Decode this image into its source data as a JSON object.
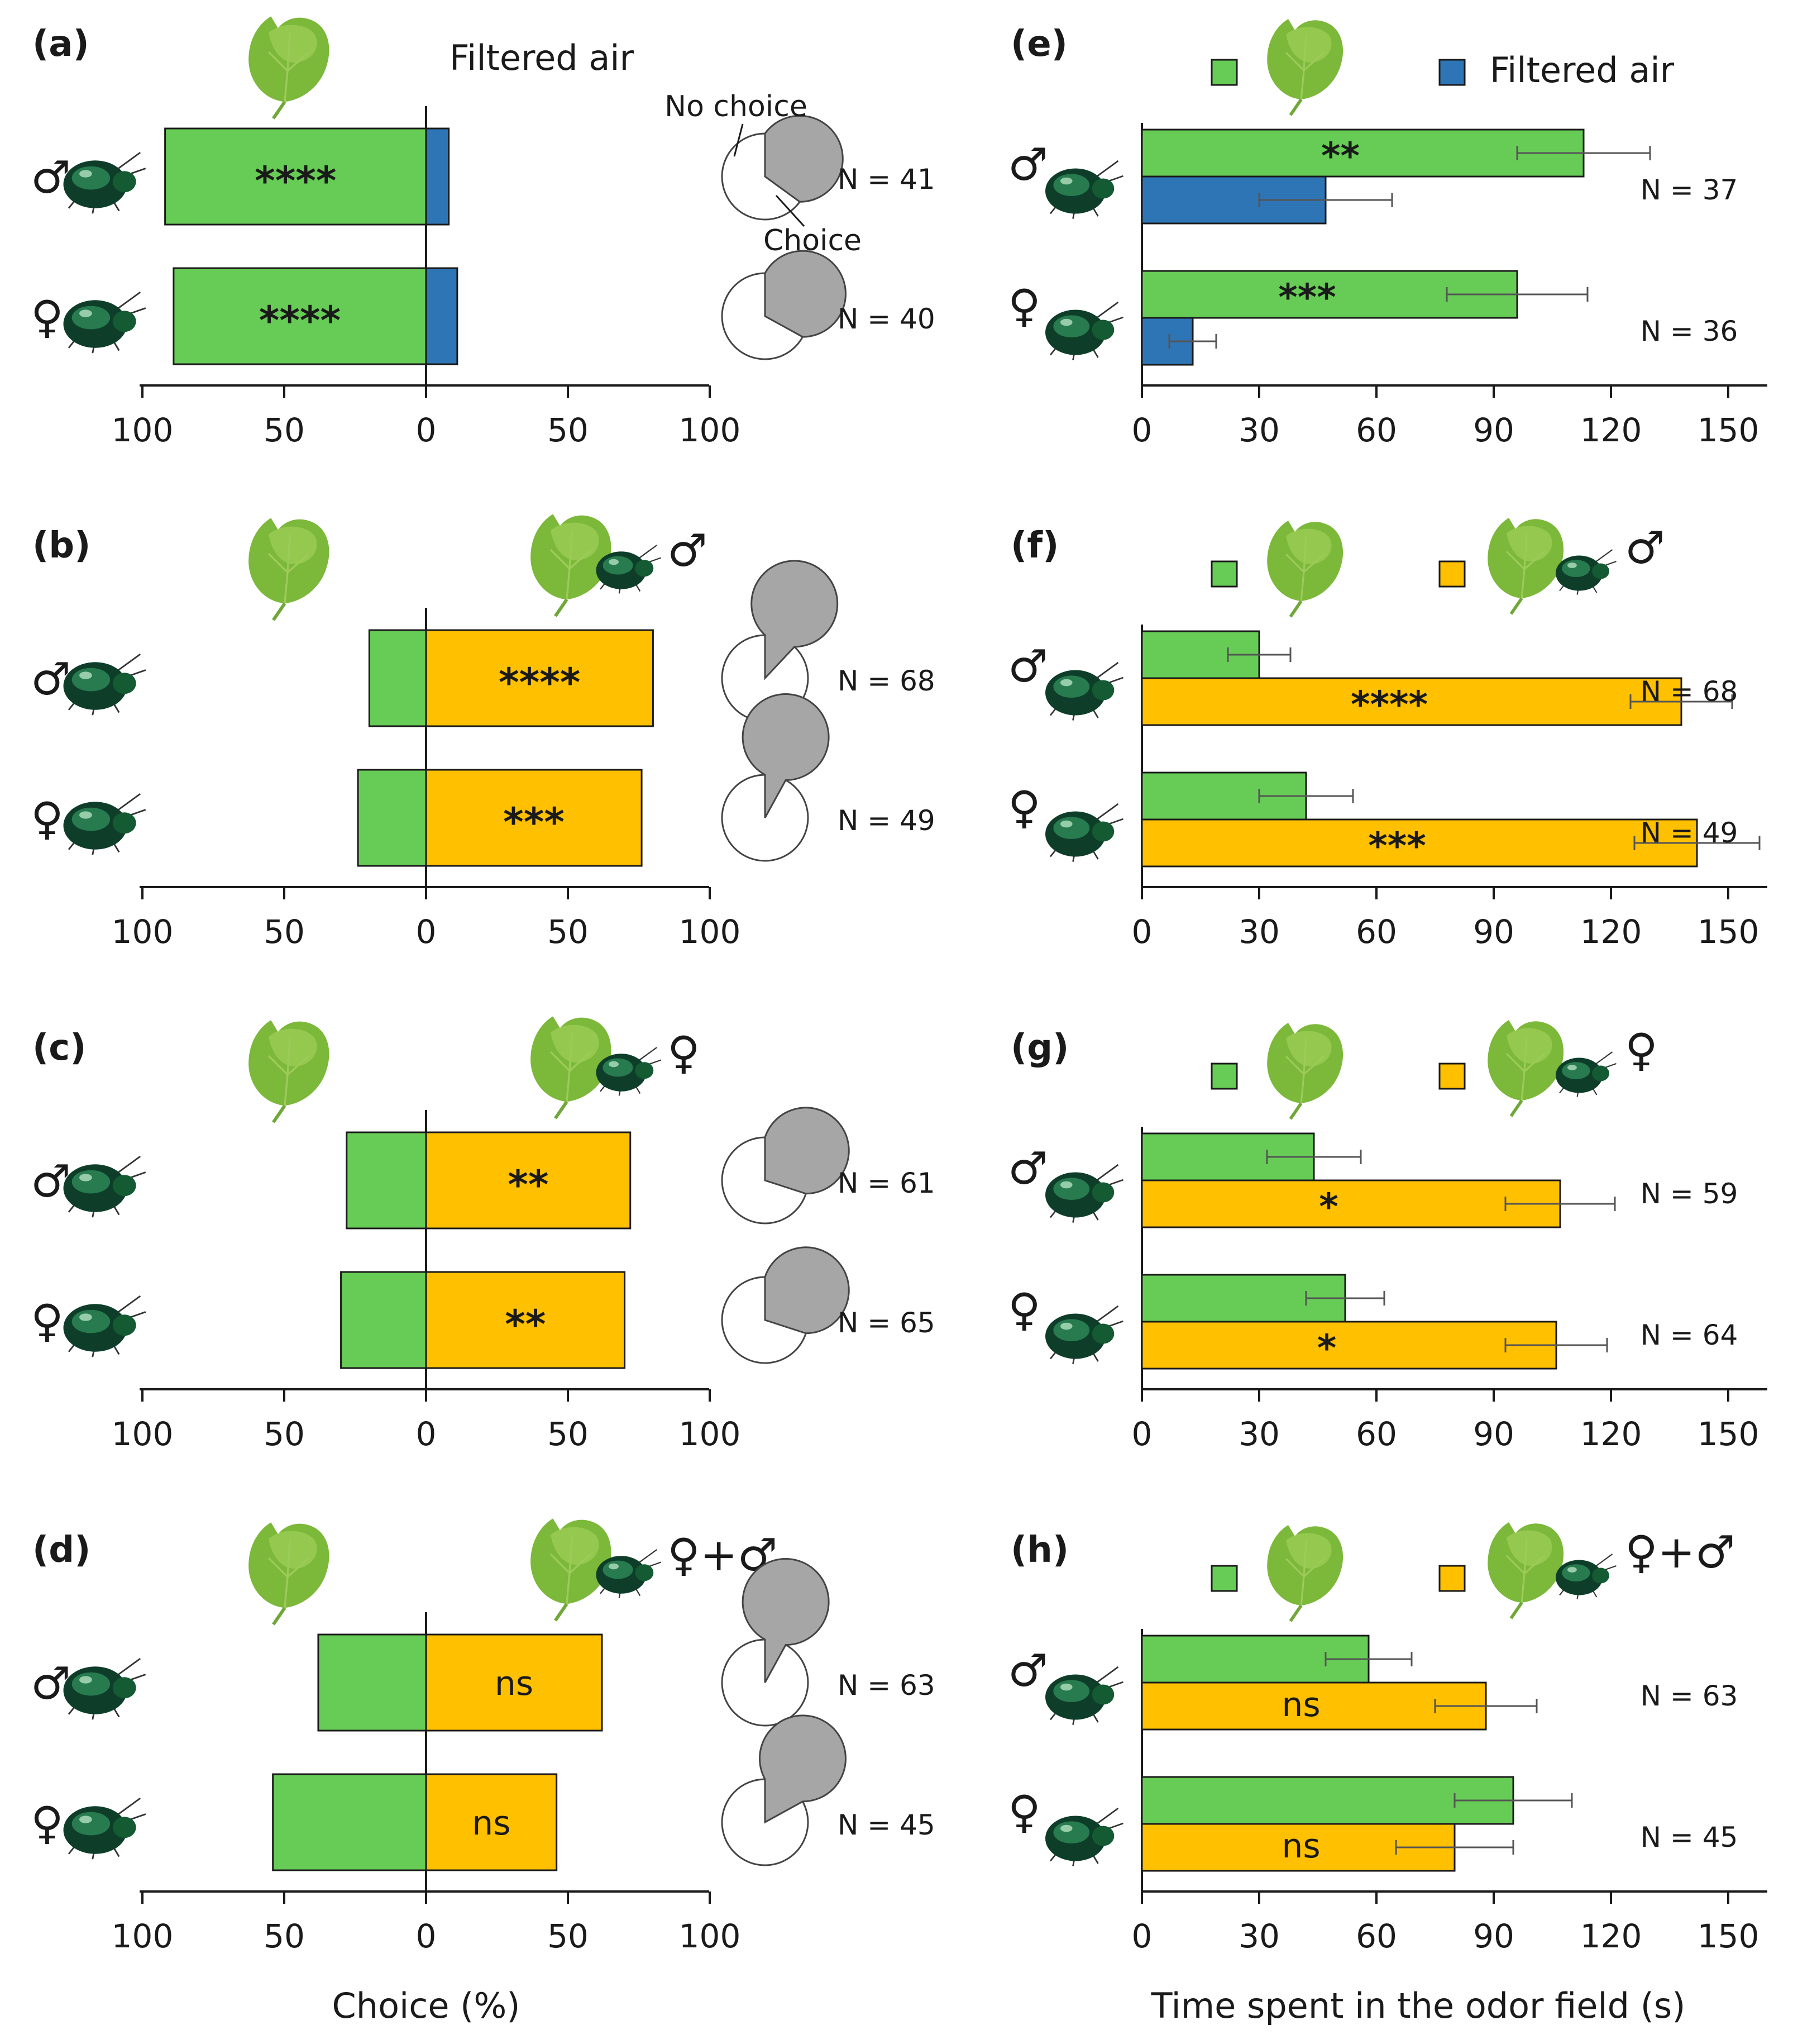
{
  "colors": {
    "green": "#66CC55",
    "orange": "#FFC000",
    "blue": "#2E75B6",
    "pie_choice": "#A6A6A6",
    "pie_nochoice": "#FFFFFF",
    "ink": "#1A1A1A",
    "errorbar": "#555555"
  },
  "symbols": {
    "male": "♂",
    "female": "♀"
  },
  "icons": {
    "leaf": "leaf-icon",
    "beetle": "beetle-icon",
    "leaf_with_beetle": "leaf-with-beetle-icon"
  },
  "left_axis": {
    "ticks": [
      "100",
      "50",
      "0",
      "50",
      "100"
    ],
    "xlabel": "Choice (%)",
    "xlim": [
      -100,
      100
    ]
  },
  "right_axis": {
    "ticks": [
      "0",
      "30",
      "60",
      "90",
      "120",
      "150"
    ],
    "xlabel": "Time spent in the odor field (s)",
    "xlim": [
      0,
      160
    ]
  },
  "pie_legend": {
    "no_choice": "No choice",
    "choice": "Choice"
  },
  "chart_data": [
    {
      "panel": "(a)",
      "type": "bar",
      "title": "Filtered air",
      "title_symbol": "",
      "options": [
        "Leaf",
        "Filtered air"
      ],
      "right_color": "blue",
      "rows": [
        {
          "sex": "♂",
          "left": -92,
          "right": 8,
          "sig": "****",
          "sig_side": "left",
          "n": "N = 41",
          "choice_pct": 65
        },
        {
          "sex": "♀",
          "left": -89,
          "right": 11,
          "sig": "****",
          "sig_side": "left",
          "n": "N = 40",
          "choice_pct": 67
        }
      ]
    },
    {
      "panel": "(b)",
      "type": "bar",
      "title": "",
      "title_symbol": "♂",
      "options": [
        "Leaf",
        "Leaf with male beetle"
      ],
      "right_color": "orange",
      "rows": [
        {
          "sex": "♂",
          "left": -20,
          "right": 80,
          "sig": "****",
          "sig_side": "right",
          "n": "N = 68",
          "choice_pct": 88
        },
        {
          "sex": "♀",
          "left": -24,
          "right": 76,
          "sig": "***",
          "sig_side": "right",
          "n": "N = 49",
          "choice_pct": 92
        }
      ]
    },
    {
      "panel": "(c)",
      "type": "bar",
      "title": "",
      "title_symbol": "♀",
      "options": [
        "Leaf",
        "Leaf with female beetle"
      ],
      "right_color": "orange",
      "rows": [
        {
          "sex": "♂",
          "left": -28,
          "right": 72,
          "sig": "**",
          "sig_side": "right",
          "n": "N = 61",
          "choice_pct": 70
        },
        {
          "sex": "♀",
          "left": -30,
          "right": 70,
          "sig": "**",
          "sig_side": "right",
          "n": "N = 65",
          "choice_pct": 70
        }
      ]
    },
    {
      "panel": "(d)",
      "type": "bar",
      "title": "",
      "title_symbol": "♀+♂",
      "options": [
        "Leaf",
        "Leaf with female and male beetles"
      ],
      "right_color": "orange",
      "rows": [
        {
          "sex": "♂",
          "left": -38,
          "right": 62,
          "sig": "ns",
          "sig_side": "right",
          "n": "N = 63",
          "choice_pct": 92
        },
        {
          "sex": "♀",
          "left": -54,
          "right": 46,
          "sig": "ns",
          "sig_side": "right",
          "n": "N = 45",
          "choice_pct": 83
        }
      ]
    },
    {
      "panel": "(e)",
      "type": "bar",
      "legend": [
        "",
        "Filtered air"
      ],
      "title_symbol": "",
      "second_color": "blue",
      "rows": [
        {
          "sex": "♂",
          "n": "N = 37",
          "bars": [
            {
              "value": 113,
              "err": 17,
              "sig": "**"
            },
            {
              "value": 47,
              "err": 17,
              "sig": ""
            }
          ]
        },
        {
          "sex": "♀",
          "n": "N = 36",
          "bars": [
            {
              "value": 96,
              "err": 18,
              "sig": "***"
            },
            {
              "value": 13,
              "err": 6,
              "sig": ""
            }
          ]
        }
      ]
    },
    {
      "panel": "(f)",
      "type": "bar",
      "legend": [
        "",
        ""
      ],
      "title_symbol": "♂",
      "second_color": "orange",
      "rows": [
        {
          "sex": "♂",
          "n": "N = 68",
          "bars": [
            {
              "value": 30,
              "err": 8,
              "sig": ""
            },
            {
              "value": 138,
              "err": 13,
              "sig": "****"
            }
          ]
        },
        {
          "sex": "♀",
          "n": "N = 49",
          "bars": [
            {
              "value": 42,
              "err": 12,
              "sig": ""
            },
            {
              "value": 142,
              "err": 16,
              "sig": "***"
            }
          ]
        }
      ]
    },
    {
      "panel": "(g)",
      "type": "bar",
      "legend": [
        "",
        ""
      ],
      "title_symbol": "♀",
      "second_color": "orange",
      "rows": [
        {
          "sex": "♂",
          "n": "N = 59",
          "bars": [
            {
              "value": 44,
              "err": 12,
              "sig": ""
            },
            {
              "value": 107,
              "err": 14,
              "sig": "*"
            }
          ]
        },
        {
          "sex": "♀",
          "n": "N = 64",
          "bars": [
            {
              "value": 52,
              "err": 10,
              "sig": ""
            },
            {
              "value": 106,
              "err": 13,
              "sig": "*"
            }
          ]
        }
      ]
    },
    {
      "panel": "(h)",
      "type": "bar",
      "legend": [
        "",
        ""
      ],
      "title_symbol": "♀+♂",
      "second_color": "orange",
      "rows": [
        {
          "sex": "♂",
          "n": "N = 63",
          "bars": [
            {
              "value": 58,
              "err": 11,
              "sig": ""
            },
            {
              "value": 88,
              "err": 13,
              "sig": "ns"
            }
          ]
        },
        {
          "sex": "♀",
          "n": "N = 45",
          "bars": [
            {
              "value": 95,
              "err": 15,
              "sig": ""
            },
            {
              "value": 80,
              "err": 15,
              "sig": "ns"
            }
          ]
        }
      ]
    }
  ]
}
